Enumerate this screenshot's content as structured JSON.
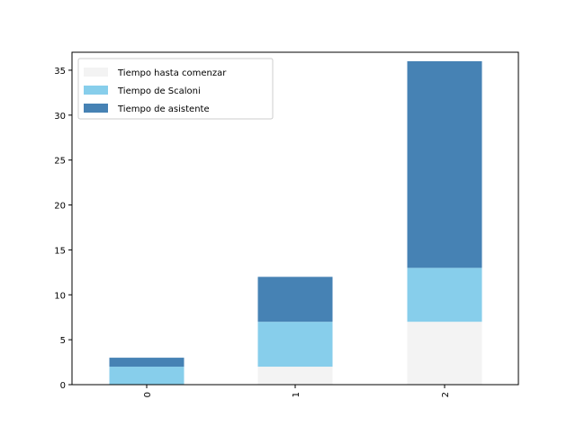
{
  "chart_data": {
    "type": "bar",
    "stacked": true,
    "categories": [
      "0",
      "1",
      "2"
    ],
    "series": [
      {
        "name": "Tiempo hasta comenzar",
        "values": [
          0,
          2,
          7
        ],
        "color": "#f3f3f3"
      },
      {
        "name": "Tiempo de Scaloni",
        "values": [
          2,
          5,
          6
        ],
        "color": "#87ceeb"
      },
      {
        "name": "Tiempo de asistente",
        "values": [
          1,
          5,
          23
        ],
        "color": "#4682b4"
      }
    ],
    "ylim": [
      0,
      37
    ],
    "yticks": [
      "0",
      "5",
      "10",
      "15",
      "20",
      "25",
      "30",
      "35"
    ],
    "xtick_rotation": "vertical",
    "legend_position": "upper-left",
    "grid": false,
    "title": "",
    "xlabel": "",
    "ylabel": ""
  }
}
